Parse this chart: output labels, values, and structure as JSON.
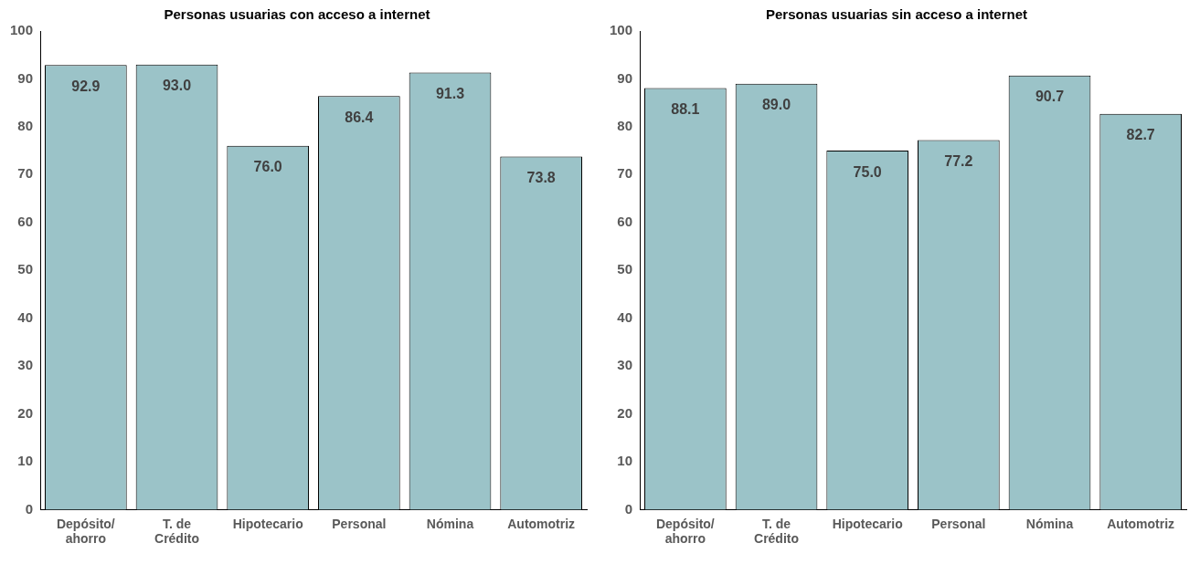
{
  "chart_data": [
    {
      "type": "bar",
      "title": "Personas usuarias con acceso a internet",
      "categories": [
        "Depósito/\nahorro",
        "T. de\nCrédito",
        "Hipotecario",
        "Personal",
        "Nómina",
        "Automotriz"
      ],
      "values": [
        92.9,
        93.0,
        76.0,
        86.4,
        91.3,
        73.8
      ],
      "value_labels": [
        "92.9",
        "93.0",
        "76.0",
        "86.4",
        "91.3",
        "73.8"
      ],
      "color": "#9bc3c8",
      "ylim": [
        0,
        100
      ],
      "yticks": [
        0,
        10,
        20,
        30,
        40,
        50,
        60,
        70,
        80,
        90,
        100
      ],
      "grid": false,
      "legend": false
    },
    {
      "type": "bar",
      "title": "Personas usuarias sin acceso a internet",
      "categories": [
        "Depósito/\nahorro",
        "T. de\nCrédito",
        "Hipotecario",
        "Personal",
        "Nómina",
        "Automotriz"
      ],
      "values": [
        88.1,
        89.0,
        75.0,
        77.2,
        90.7,
        82.7
      ],
      "value_labels": [
        "88.1",
        "89.0",
        "75.0",
        "77.2",
        "90.7",
        "82.7"
      ],
      "color": "#9bc3c8",
      "ylim": [
        0,
        100
      ],
      "yticks": [
        0,
        10,
        20,
        30,
        40,
        50,
        60,
        70,
        80,
        90,
        100
      ],
      "grid": false,
      "legend": false
    }
  ]
}
